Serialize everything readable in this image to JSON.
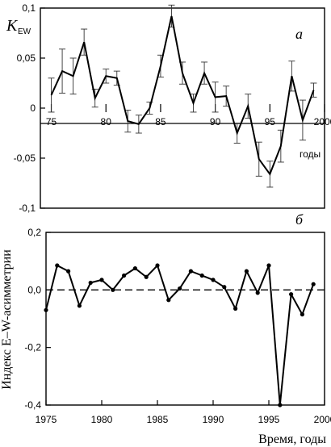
{
  "chart_data": [
    {
      "type": "line",
      "panel_label": "а",
      "ylabel_main": "K",
      "ylabel_sub": "EW",
      "x_unit_label": "годы",
      "xlim": [
        1974,
        2000
      ],
      "ylim": [
        -0.1,
        0.1
      ],
      "x_ticks": [
        75,
        80,
        85,
        90,
        95,
        2000
      ],
      "x_tick_values": [
        1975,
        1980,
        1985,
        1990,
        1995,
        2000
      ],
      "y_ticks": [
        0.1,
        0.05,
        0,
        -0.05,
        -0.1
      ],
      "y_tick_labels": [
        "0,1",
        "0,05",
        "0",
        "-0,05",
        "-0,1"
      ],
      "error_bars": true,
      "series": [
        {
          "x": [
            1975,
            1976,
            1977,
            1978,
            1979,
            1980,
            1981,
            1982,
            1983,
            1984,
            1985,
            1986,
            1987,
            1988,
            1989,
            1990,
            1991,
            1992,
            1993,
            1994,
            1995,
            1996,
            1997,
            1998,
            1999
          ],
          "y": [
            0.013,
            0.037,
            0.032,
            0.066,
            0.01,
            0.032,
            0.03,
            -0.013,
            -0.016,
            0.0,
            0.042,
            0.092,
            0.035,
            0.005,
            0.035,
            0.011,
            0.012,
            -0.025,
            0.002,
            -0.051,
            -0.066,
            -0.038,
            0.032,
            -0.012,
            0.018
          ],
          "err": [
            0.017,
            0.022,
            0.018,
            0.013,
            0.009,
            0.007,
            0.007,
            0.011,
            0.009,
            0.006,
            0.011,
            0.011,
            0.011,
            0.009,
            0.011,
            0.015,
            0.01,
            0.01,
            0.012,
            0.017,
            0.013,
            0.016,
            0.015,
            0.02,
            0.007
          ]
        }
      ]
    },
    {
      "type": "line",
      "panel_label": "б",
      "ylabel": "Индекс E–W-асимметрии",
      "xlabel": "Время, годы",
      "xlim": [
        1975,
        2000
      ],
      "ylim": [
        -0.4,
        0.2
      ],
      "x_ticks": [
        1975,
        1980,
        1985,
        1990,
        1995,
        2000
      ],
      "y_ticks": [
        0.2,
        0.0,
        -0.2,
        -0.4
      ],
      "y_tick_labels": [
        "0,2",
        "0,0",
        "-0,2",
        "-0,4"
      ],
      "reference_line_y": 0,
      "series": [
        {
          "x": [
            1975,
            1976,
            1977,
            1978,
            1979,
            1980,
            1981,
            1982,
            1983,
            1984,
            1985,
            1986,
            1987,
            1988,
            1989,
            1990,
            1991,
            1992,
            1993,
            1994,
            1995,
            1996,
            1997,
            1998,
            1999
          ],
          "y": [
            -0.07,
            0.085,
            0.065,
            -0.055,
            0.025,
            0.035,
            0.0,
            0.05,
            0.075,
            0.045,
            0.085,
            -0.035,
            0.005,
            0.065,
            0.05,
            0.035,
            0.01,
            -0.065,
            0.065,
            -0.01,
            0.085,
            -0.4,
            -0.015,
            -0.085,
            0.02
          ]
        }
      ]
    }
  ]
}
